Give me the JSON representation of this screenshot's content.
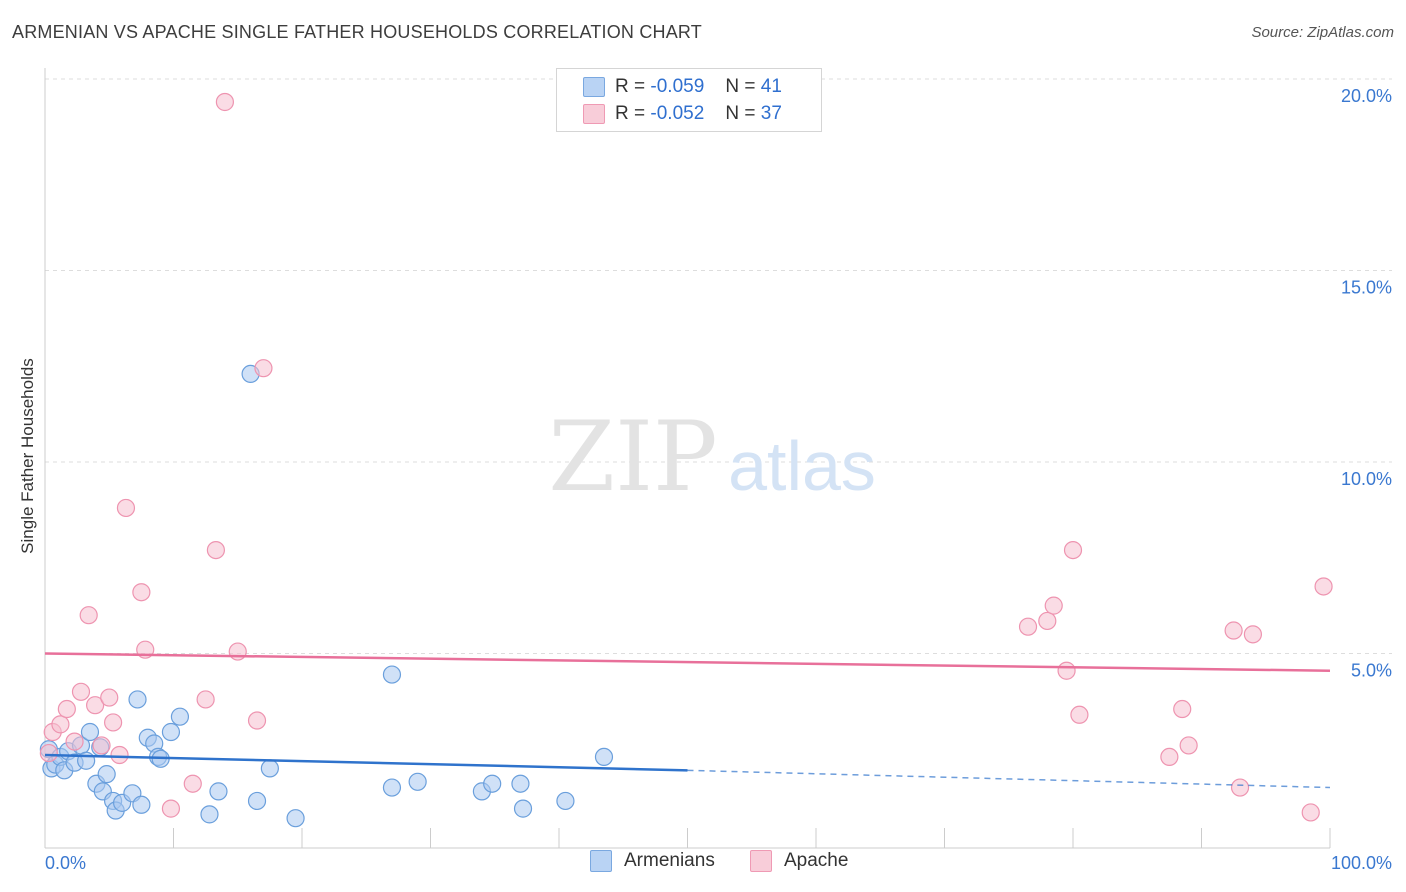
{
  "title": "ARMENIAN VS APACHE SINGLE FATHER HOUSEHOLDS CORRELATION CHART",
  "source": "Source: ZipAtlas.com",
  "watermark": {
    "zip": "ZIP",
    "atlas": "atlas"
  },
  "legend": {
    "rows": [
      {
        "r_label": "R =",
        "r_value": "-0.059",
        "n_label": "N =",
        "n_value": "41"
      },
      {
        "r_label": "R =",
        "r_value": "-0.052",
        "n_label": "N =",
        "n_value": "37"
      }
    ]
  },
  "colors": {
    "armenians_fill": "#a9c8f0",
    "armenians_stroke": "#6a9fdc",
    "armenians_line": "#2f73cc",
    "apache_fill": "#f6bfd0",
    "apache_stroke": "#ee94b0",
    "apache_line": "#e8709a",
    "axis_label": "#3a78d0",
    "grid": "#dddddd"
  },
  "chart_data": {
    "type": "scatter",
    "title": "ARMENIAN VS APACHE SINGLE FATHER HOUSEHOLDS CORRELATION CHART",
    "xlabel": "",
    "ylabel": "Single Father Households",
    "xlim": [
      0,
      100
    ],
    "ylim": [
      0,
      20.5
    ],
    "x_tick_labels": [
      "0.0%",
      "100.0%"
    ],
    "y_ticks": [
      5,
      10,
      15,
      20
    ],
    "y_tick_labels": [
      "5.0%",
      "10.0%",
      "15.0%",
      "20.0%"
    ],
    "legend_position": "top-center",
    "series": [
      {
        "name": "Armenians",
        "points": [
          [
            0.3,
            2.5
          ],
          [
            0.5,
            2.0
          ],
          [
            0.8,
            2.1
          ],
          [
            1.2,
            2.3
          ],
          [
            1.5,
            1.95
          ],
          [
            1.8,
            2.45
          ],
          [
            2.3,
            2.15
          ],
          [
            2.8,
            2.6
          ],
          [
            3.2,
            2.2
          ],
          [
            3.5,
            2.95
          ],
          [
            4.0,
            1.6
          ],
          [
            4.3,
            2.55
          ],
          [
            4.5,
            1.4
          ],
          [
            4.8,
            1.85
          ],
          [
            5.3,
            1.15
          ],
          [
            5.5,
            0.9
          ],
          [
            6.0,
            1.1
          ],
          [
            6.8,
            1.35
          ],
          [
            7.2,
            3.8
          ],
          [
            7.5,
            1.05
          ],
          [
            8.0,
            2.8
          ],
          [
            8.5,
            2.65
          ],
          [
            8.8,
            2.3
          ],
          [
            9.0,
            2.25
          ],
          [
            9.8,
            2.95
          ],
          [
            10.5,
            3.35
          ],
          [
            12.8,
            0.8
          ],
          [
            13.5,
            1.4
          ],
          [
            16.5,
            1.15
          ],
          [
            16.0,
            12.3
          ],
          [
            17.5,
            2.0
          ],
          [
            19.5,
            0.7
          ],
          [
            27.0,
            4.45
          ],
          [
            27.0,
            1.5
          ],
          [
            29.0,
            1.65
          ],
          [
            34.0,
            1.4
          ],
          [
            34.8,
            1.6
          ],
          [
            37.0,
            1.6
          ],
          [
            37.2,
            0.95
          ],
          [
            40.5,
            1.15
          ],
          [
            43.5,
            2.3
          ]
        ]
      },
      {
        "name": "Apache",
        "points": [
          [
            0.3,
            2.4
          ],
          [
            0.6,
            2.95
          ],
          [
            1.2,
            3.15
          ],
          [
            1.7,
            3.55
          ],
          [
            2.3,
            2.7
          ],
          [
            2.8,
            4.0
          ],
          [
            3.4,
            6.0
          ],
          [
            3.9,
            3.65
          ],
          [
            4.4,
            2.6
          ],
          [
            5.0,
            3.85
          ],
          [
            5.3,
            3.2
          ],
          [
            5.8,
            2.35
          ],
          [
            6.3,
            8.8
          ],
          [
            7.5,
            6.6
          ],
          [
            7.8,
            5.1
          ],
          [
            9.8,
            0.95
          ],
          [
            11.5,
            1.6
          ],
          [
            12.5,
            3.8
          ],
          [
            13.3,
            7.7
          ],
          [
            14.0,
            19.4
          ],
          [
            15.0,
            5.05
          ],
          [
            16.5,
            3.25
          ],
          [
            17.0,
            12.45
          ],
          [
            76.5,
            5.7
          ],
          [
            78.0,
            5.85
          ],
          [
            78.5,
            6.25
          ],
          [
            79.5,
            4.55
          ],
          [
            80.0,
            7.7
          ],
          [
            80.5,
            3.4
          ],
          [
            87.5,
            2.3
          ],
          [
            88.5,
            3.55
          ],
          [
            89.0,
            2.6
          ],
          [
            92.5,
            5.6
          ],
          [
            93.0,
            1.5
          ],
          [
            94.0,
            5.5
          ],
          [
            98.5,
            0.85
          ],
          [
            99.5,
            6.75
          ]
        ]
      }
    ],
    "trend_lines": [
      {
        "name": "Armenians",
        "solid": [
          [
            0,
            2.35
          ],
          [
            50,
            1.95
          ]
        ],
        "dashed": [
          [
            50,
            1.95
          ],
          [
            100,
            1.5
          ]
        ]
      },
      {
        "name": "Apache",
        "solid": [
          [
            0,
            5.0
          ],
          [
            100,
            4.55
          ]
        ]
      }
    ]
  },
  "bottom_legend": [
    "Armenians",
    "Apache"
  ]
}
